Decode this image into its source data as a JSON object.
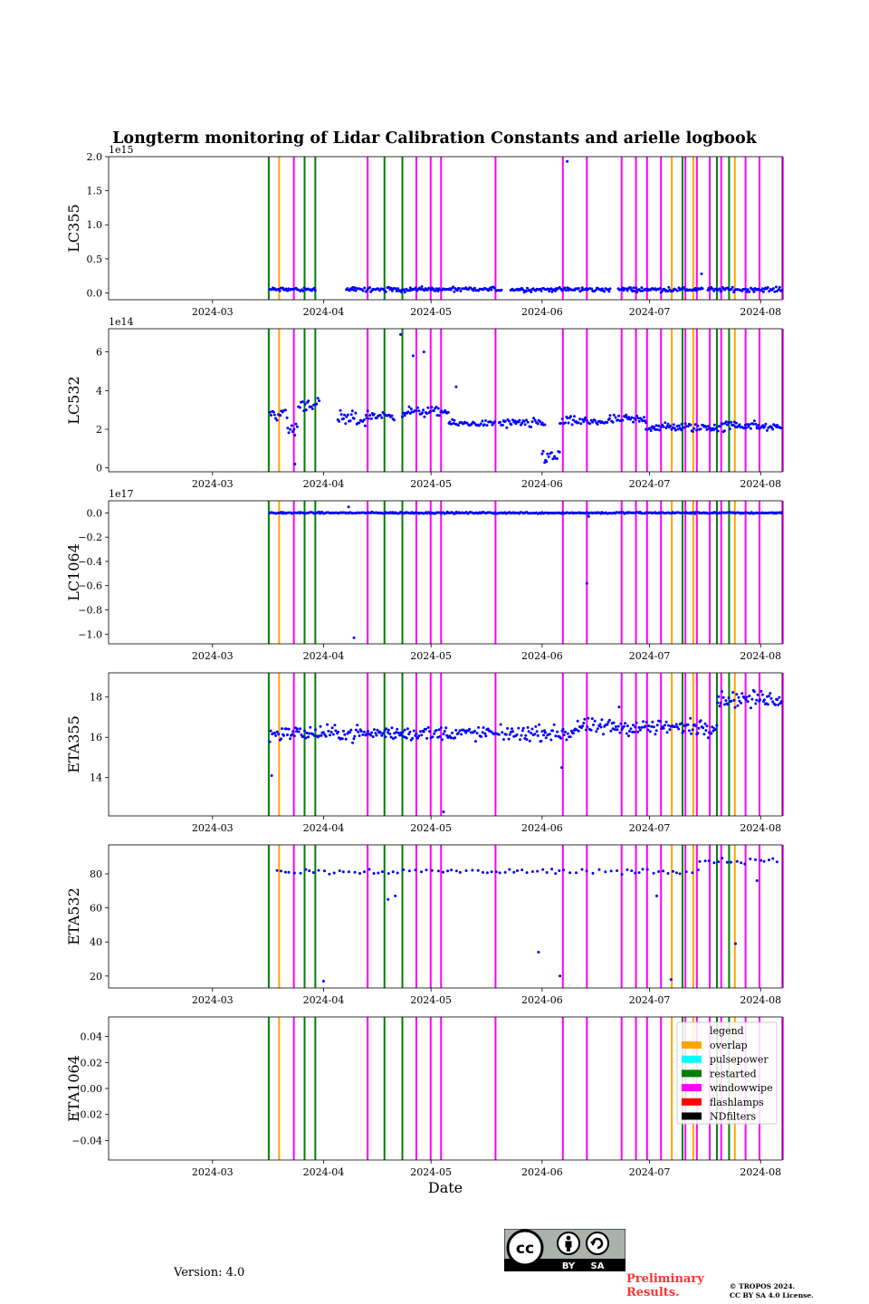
{
  "chart_data": {
    "type": "scatter",
    "title": "Longterm monitoring of Lidar Calibration Constants and arielle logbook",
    "xlabel": "Date",
    "x_ticks": [
      "2024-03",
      "2024-04",
      "2024-05",
      "2024-06",
      "2024-07",
      "2024-08"
    ],
    "x_tick_days": [
      29,
      60,
      90,
      121,
      151,
      182
    ],
    "x_range_days": [
      0,
      188
    ],
    "marker_color": "#0000ff",
    "events": [
      {
        "type": "restarted",
        "day": 44.7
      },
      {
        "type": "overlap",
        "day": 47.6
      },
      {
        "type": "windowwipe",
        "day": 51.7
      },
      {
        "type": "restarted",
        "day": 54.7
      },
      {
        "type": "restarted",
        "day": 57.7
      },
      {
        "type": "windowwipe",
        "day": 72.3
      },
      {
        "type": "restarted",
        "day": 77.0
      },
      {
        "type": "restarted",
        "day": 82.0
      },
      {
        "type": "windowwipe",
        "day": 85.9
      },
      {
        "type": "windowwipe",
        "day": 89.9
      },
      {
        "type": "windowwipe",
        "day": 92.8
      },
      {
        "type": "windowwipe",
        "day": 108.0
      },
      {
        "type": "windowwipe",
        "day": 126.8
      },
      {
        "type": "windowwipe",
        "day": 133.5
      },
      {
        "type": "windowwipe",
        "day": 143.2
      },
      {
        "type": "windowwipe",
        "day": 147.2
      },
      {
        "type": "windowwipe",
        "day": 150.3
      },
      {
        "type": "windowwipe",
        "day": 154.2
      },
      {
        "type": "overlap",
        "day": 157.2
      },
      {
        "type": "restarted",
        "day": 160.2
      },
      {
        "type": "windowwipe",
        "day": 161.0
      },
      {
        "type": "overlap",
        "day": 163.2
      },
      {
        "type": "windowwipe",
        "day": 164.2
      },
      {
        "type": "windowwipe",
        "day": 167.8
      },
      {
        "type": "restarted",
        "day": 169.8
      },
      {
        "type": "windowwipe",
        "day": 171.0
      },
      {
        "type": "restarted",
        "day": 173.2
      },
      {
        "type": "overlap",
        "day": 174.8
      },
      {
        "type": "windowwipe",
        "day": 177.8
      },
      {
        "type": "windowwipe",
        "day": 181.7
      },
      {
        "type": "windowwipe",
        "day": 188.2
      }
    ],
    "event_colors": {
      "overlap": "#ffa500",
      "pulsepower": "#00ffff",
      "restarted": "#008000",
      "windowwipe": "#ff00ff",
      "flashlamps": "#ff0000",
      "NDfilters": "#000000"
    },
    "legend": {
      "title": "legend",
      "placement": "upper right of last panel",
      "entries": [
        "overlap",
        "pulsepower",
        "restarted",
        "windowwipe",
        "flashlamps",
        "NDfilters"
      ]
    },
    "panels": [
      {
        "ylabel": "LC355",
        "multiplier": "1e15",
        "ylim": [
          -0.1,
          2.0
        ],
        "yticks": [
          0.0,
          0.5,
          1.0,
          1.5,
          2.0
        ],
        "ytick_labels": [
          "0.0",
          "0.5",
          "1.0",
          "1.5",
          "2.0"
        ],
        "data_start_day": 45,
        "data_end_day": 188,
        "gaps": [
          [
            58,
            66
          ],
          [
            110,
            112
          ],
          [
            140,
            142
          ],
          [
            166,
            167
          ]
        ],
        "series": {
          "mean": 0.05,
          "spread": 0.04
        },
        "outliers": [
          [
            128,
            1.93
          ],
          [
            165.5,
            0.28
          ]
        ]
      },
      {
        "ylabel": "LC532",
        "multiplier": "1e14",
        "ylim": [
          -0.2,
          7.2
        ],
        "yticks": [
          0,
          2,
          4,
          6
        ],
        "ytick_labels": [
          "0",
          "2",
          "4",
          "6"
        ],
        "data_start_day": 45,
        "data_end_day": 188,
        "segments": [
          [
            45,
            50,
            2.8,
            0.4
          ],
          [
            50,
            53,
            2.0,
            0.9
          ],
          [
            53,
            59,
            3.3,
            0.4
          ],
          [
            64,
            72,
            2.5,
            0.5
          ],
          [
            72,
            80,
            2.7,
            0.3
          ],
          [
            82,
            95,
            2.9,
            0.3
          ],
          [
            95,
            108,
            2.3,
            0.2
          ],
          [
            109,
            122,
            2.3,
            0.3
          ],
          [
            121,
            126,
            0.6,
            0.5
          ],
          [
            126,
            140,
            2.4,
            0.3
          ],
          [
            140,
            150,
            2.5,
            0.3
          ],
          [
            150,
            160,
            2.1,
            0.3
          ],
          [
            160,
            172,
            2.1,
            0.3
          ],
          [
            172,
            181,
            2.2,
            0.3
          ],
          [
            181,
            188,
            2.1,
            0.2
          ]
        ],
        "outliers": [
          [
            81.5,
            6.9
          ],
          [
            85,
            5.8
          ],
          [
            88,
            6.0
          ],
          [
            97,
            4.2
          ],
          [
            52,
            0.2
          ]
        ]
      },
      {
        "ylabel": "LC1064",
        "multiplier": "1e17",
        "ylim": [
          -1.08,
          0.1
        ],
        "yticks": [
          0.0,
          -0.2,
          -0.4,
          -0.6,
          -0.8,
          -1.0
        ],
        "ytick_labels": [
          "0.0",
          "−0.2",
          "−0.4",
          "−0.6",
          "−0.8",
          "−1.0"
        ],
        "data_start_day": 45,
        "data_end_day": 188,
        "series": {
          "mean": 0.0,
          "spread": 0.008
        },
        "outliers": [
          [
            68.5,
            -1.03
          ],
          [
            133.5,
            -0.58
          ],
          [
            134,
            -0.03
          ],
          [
            67,
            0.05
          ]
        ]
      },
      {
        "ylabel": "ETA355",
        "multiplier": "",
        "ylim": [
          12.1,
          19.2
        ],
        "yticks": [
          14,
          16,
          18
        ],
        "ytick_labels": [
          "14",
          "16",
          "18"
        ],
        "data_start_day": 45,
        "data_end_day": 188,
        "segments": [
          [
            45,
            130,
            16.2,
            0.45
          ],
          [
            130,
            170,
            16.5,
            0.5
          ],
          [
            170,
            188,
            17.9,
            0.5
          ]
        ],
        "outliers": [
          [
            45.5,
            14.1
          ],
          [
            93.5,
            12.3
          ],
          [
            126.5,
            14.5
          ],
          [
            142.5,
            17.5
          ]
        ]
      },
      {
        "ylabel": "ETA532",
        "multiplier": "",
        "ylim": [
          13,
          97
        ],
        "yticks": [
          20,
          40,
          60,
          80
        ],
        "ytick_labels": [
          "20",
          "40",
          "60",
          "80"
        ],
        "data_start_day": 47,
        "data_end_day": 188,
        "sparse": true,
        "segments": [
          [
            47,
            165,
            81.5,
            2.0
          ],
          [
            165,
            188,
            87.5,
            2.0
          ]
        ],
        "outliers": [
          [
            60,
            17
          ],
          [
            78,
            65
          ],
          [
            80,
            67
          ],
          [
            120,
            34
          ],
          [
            126,
            20
          ],
          [
            153,
            67
          ],
          [
            157,
            18
          ],
          [
            175,
            39
          ],
          [
            181,
            76
          ]
        ]
      },
      {
        "ylabel": "ETA1064",
        "multiplier": "",
        "ylim": [
          -0.055,
          0.055
        ],
        "yticks": [
          0.04,
          0.02,
          0.0,
          -0.02,
          -0.04
        ],
        "ytick_labels": [
          "0.04",
          "0.02",
          "0.00",
          "−0.02",
          "−0.04"
        ],
        "empty": true
      }
    ]
  },
  "footer": {
    "version": "Version: 4.0",
    "preliminary_line1": "Preliminary",
    "preliminary_line2": "Results.",
    "copyright_line1": "© TROPOS 2024.",
    "copyright_line2": "CC BY SA 4.0 License.",
    "cc_label": "cc",
    "by_label": "BY",
    "sa_label": "SA"
  }
}
